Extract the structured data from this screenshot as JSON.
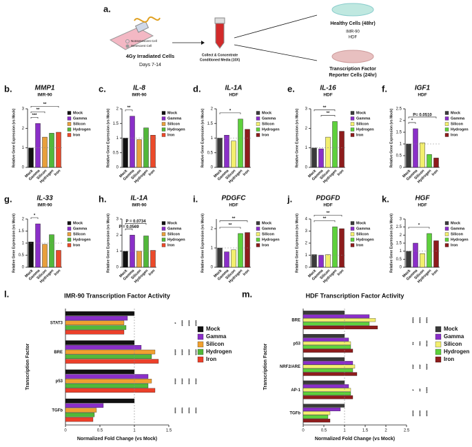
{
  "diagram": {
    "label": "a.",
    "legend_nonsenescent": "Nonsenescent Cell",
    "legend_senescent": "Senescent Cell",
    "step1_title": "4Gy Irradiated Cells",
    "step1_days": "Days 7-14",
    "step2_line1": "Collect & Concentrate",
    "step2_line2": "Conditioned Media (10X)",
    "out1_title": "Healthy Cells (48hr)",
    "out1_line1": "IMR-90",
    "out1_line2": "HDF",
    "out2_line1": "Transcription Factor",
    "out2_line2": "Reporter Cells (24hr)"
  },
  "chart_data": [
    {
      "type": "bar",
      "label": "b.",
      "title": "MMP1",
      "subtitle": "IMR-90",
      "ylabel": "Relative Gene Expression (vs Mock)",
      "categories": [
        "Mock",
        "Gamma",
        "Silicon",
        "Hydrogen",
        "Iron"
      ],
      "values": [
        1.0,
        2.25,
        1.55,
        1.75,
        1.8
      ],
      "colors": [
        "#111111",
        "#8a2fc8",
        "#e8a03c",
        "#52b83a",
        "#ec4a2a"
      ],
      "ylim": [
        0,
        3
      ],
      "yticks": [
        0,
        1,
        2,
        3
      ],
      "reference_line": 1,
      "annotations": [
        {
          "text": "***",
          "between": [
            "Mock",
            "Gamma"
          ]
        },
        {
          "text": "**",
          "between": [
            "Mock",
            "Silicon"
          ]
        },
        {
          "text": "**",
          "between": [
            "Mock",
            "Iron"
          ]
        }
      ]
    },
    {
      "type": "bar",
      "label": "c.",
      "title": "IL-8",
      "subtitle": "IMR-90",
      "ylabel": "Relative Gene Expression (vs Mock)",
      "categories": [
        "Mock",
        "Gamma",
        "Silicon",
        "Hydrogen",
        "Iron"
      ],
      "values": [
        1.0,
        1.75,
        0.95,
        1.35,
        1.1
      ],
      "colors": [
        "#111111",
        "#8a2fc8",
        "#e8a03c",
        "#52b83a",
        "#ec4a2a"
      ],
      "ylim": [
        0,
        2
      ],
      "yticks": [
        0,
        0.5,
        1,
        1.5,
        2
      ],
      "reference_line": 1,
      "annotations": [
        {
          "text": "**",
          "between": [
            "Mock",
            "Gamma"
          ]
        }
      ]
    },
    {
      "type": "bar",
      "label": "d.",
      "title": "IL-1A",
      "subtitle": "HDF",
      "ylabel": "Relative Gene Expression (vs Mock)",
      "categories": [
        "Mock",
        "Gamma",
        "Silicon",
        "Hydrogen",
        "Iron"
      ],
      "values": [
        1.0,
        1.1,
        0.9,
        1.65,
        1.3
      ],
      "colors": [
        "#3a3a3a",
        "#8a2fc8",
        "#f3ef6e",
        "#5ed13c",
        "#8e1c1c"
      ],
      "ylim": [
        0,
        2
      ],
      "yticks": [
        0,
        0.5,
        1,
        1.5,
        2
      ],
      "reference_line": 1,
      "annotations": [
        {
          "text": "*",
          "between": [
            "Mock",
            "Hydrogen"
          ]
        }
      ]
    },
    {
      "type": "bar",
      "label": "e.",
      "title": "IL-16",
      "subtitle": "HDF",
      "ylabel": "Relative Gene Expression (vs Mock)",
      "categories": [
        "Mock",
        "Gamma",
        "Silicon",
        "Hydrogen",
        "Iron"
      ],
      "values": [
        1.0,
        0.95,
        1.55,
        2.35,
        1.85
      ],
      "colors": [
        "#3a3a3a",
        "#8a2fc8",
        "#f3ef6e",
        "#5ed13c",
        "#8e1c1c"
      ],
      "ylim": [
        0,
        3
      ],
      "yticks": [
        0,
        1,
        2,
        3
      ],
      "reference_line": 1,
      "annotations": [
        {
          "text": "**",
          "between": [
            "Gamma",
            "Hydrogen"
          ]
        },
        {
          "text": "**",
          "between": [
            "Mock",
            "Hydrogen"
          ]
        }
      ]
    },
    {
      "type": "bar",
      "label": "f.",
      "title": "IGF1",
      "subtitle": "HDF",
      "ylabel": "Relative Gene Expression (vs Mock)",
      "categories": [
        "Mock",
        "Gamma",
        "Silicon",
        "Hydrogen",
        "Iron"
      ],
      "values": [
        1.0,
        1.65,
        1.05,
        0.55,
        0.4
      ],
      "colors": [
        "#3a3a3a",
        "#8a2fc8",
        "#f3ef6e",
        "#5ed13c",
        "#8e1c1c"
      ],
      "ylim": [
        0,
        2.5
      ],
      "yticks": [
        0,
        0.5,
        1,
        1.5,
        2,
        2.5
      ],
      "reference_line": 1,
      "annotations": [
        {
          "text": "*",
          "between": [
            "Mock",
            "Gamma"
          ]
        },
        {
          "text": "P= 0.0510",
          "between": [
            "Mock",
            "Iron"
          ]
        }
      ]
    },
    {
      "type": "bar",
      "label": "g.",
      "title": "IL-33",
      "subtitle": "IMR-90",
      "ylabel": "Relative Gene Expression (vs Mock)",
      "categories": [
        "Mock",
        "Gamma",
        "Silicon",
        "Hydrogen",
        "Iron"
      ],
      "values": [
        1.05,
        1.8,
        0.95,
        1.35,
        0.7
      ],
      "colors": [
        "#111111",
        "#8a2fc8",
        "#e8a03c",
        "#52b83a",
        "#ec4a2a"
      ],
      "ylim": [
        0,
        2
      ],
      "yticks": [
        0,
        0.5,
        1,
        1.5,
        2
      ],
      "reference_line": 1,
      "annotations": [
        {
          "text": "*",
          "between": [
            "Mock",
            "Gamma"
          ]
        }
      ]
    },
    {
      "type": "bar",
      "label": "h.",
      "title": "IL-1A",
      "subtitle": "IMR-90",
      "ylabel": "Relative Gene Expression (vs Mock)",
      "categories": [
        "Mock",
        "Gamma",
        "Silicon",
        "Hydrogen",
        "Iron"
      ],
      "values": [
        1.0,
        2.0,
        1.0,
        1.95,
        1.05
      ],
      "colors": [
        "#111111",
        "#8a2fc8",
        "#e8a03c",
        "#52b83a",
        "#ec4a2a"
      ],
      "ylim": [
        0,
        3
      ],
      "yticks": [
        0,
        1,
        2,
        3
      ],
      "reference_line": 1,
      "annotations": [
        {
          "text": "P = 0.0569",
          "between": [
            "Mock",
            "Gamma"
          ]
        },
        {
          "text": "P = 0.0734",
          "between": [
            "Mock",
            "Hydrogen"
          ]
        }
      ]
    },
    {
      "type": "bar",
      "label": "i.",
      "title": "PDGFC",
      "subtitle": "HDF",
      "ylabel": "Relative Gene Expression (vs Mock)",
      "categories": [
        "Mock",
        "Gamma",
        "Silicon",
        "Hydrogen",
        "Iron"
      ],
      "values": [
        1.0,
        0.8,
        0.9,
        1.75,
        1.8
      ],
      "colors": [
        "#3a3a3a",
        "#8a2fc8",
        "#f3ef6e",
        "#5ed13c",
        "#8e1c1c"
      ],
      "ylim": [
        0,
        2.5
      ],
      "yticks": [
        0,
        1,
        2
      ],
      "reference_line": 1,
      "annotations": [
        {
          "text": "**",
          "between": [
            "Mock",
            "Hydrogen"
          ]
        },
        {
          "text": "**",
          "between": [
            "Mock",
            "Iron"
          ]
        }
      ]
    },
    {
      "type": "bar",
      "label": "j.",
      "title": "PDGFD",
      "subtitle": "HDF",
      "ylabel": "Relative Gene Expression (vs Mock)",
      "categories": [
        "Mock",
        "Gamma",
        "Silicon",
        "Hydrogen",
        "Iron"
      ],
      "values": [
        1.05,
        1.0,
        1.05,
        3.35,
        3.2
      ],
      "colors": [
        "#3a3a3a",
        "#8a2fc8",
        "#f3ef6e",
        "#5ed13c",
        "#8e1c1c"
      ],
      "ylim": [
        0,
        4
      ],
      "yticks": [
        0,
        1,
        2,
        3,
        4
      ],
      "reference_line": 1,
      "annotations": [
        {
          "text": "**",
          "between": [
            "Mock",
            "Hydrogen"
          ]
        },
        {
          "text": "**",
          "between": [
            "Mock",
            "Iron"
          ]
        }
      ]
    },
    {
      "type": "bar",
      "label": "k.",
      "title": "HGF",
      "subtitle": "HDF",
      "ylabel": "Relative Gene Expression (vs Mock)",
      "categories": [
        "Mock",
        "Gamma",
        "Silicon",
        "Hydrogen",
        "Iron"
      ],
      "values": [
        1.0,
        1.5,
        0.85,
        2.1,
        1.65
      ],
      "colors": [
        "#3a3a3a",
        "#8a2fc8",
        "#f3ef6e",
        "#5ed13c",
        "#8e1c1c"
      ],
      "ylim": [
        0,
        3
      ],
      "yticks": [
        0,
        0.5,
        1,
        1.5,
        2,
        2.5,
        3
      ],
      "reference_line": 1,
      "annotations": [
        {
          "text": "*",
          "between": [
            "Mock",
            "Hydrogen"
          ]
        }
      ]
    },
    {
      "type": "hbar",
      "label": "l.",
      "title": "IMR-90 Transcription Factor Activity",
      "xlabel": "Normalized Fold Change (vs Mock)",
      "ylabel": "Transcription Factor",
      "categories": [
        "STAT3",
        "BRE",
        "p53",
        "TGFb"
      ],
      "series": [
        {
          "name": "Mock",
          "color": "#111111",
          "values": [
            1.0,
            1.0,
            1.0,
            1.0
          ]
        },
        {
          "name": "Gamma",
          "color": "#8a2fc8",
          "values": [
            0.9,
            1.1,
            1.2,
            0.55
          ]
        },
        {
          "name": "Silicon",
          "color": "#f0a030",
          "values": [
            0.85,
            1.3,
            1.25,
            0.45
          ]
        },
        {
          "name": "Hydrogen",
          "color": "#52b83a",
          "values": [
            0.88,
            1.25,
            1.2,
            0.42
          ]
        },
        {
          "name": "Iron",
          "color": "#ec402a",
          "values": [
            0.85,
            1.35,
            1.3,
            0.4
          ]
        }
      ],
      "xlim": [
        0,
        1.5
      ],
      "xticks": [
        0,
        0.5,
        1,
        1.5
      ],
      "reference_line": 1,
      "significance": [
        [
          "*",
          "****",
          "****",
          "****"
        ],
        [
          "****",
          "****",
          "****",
          "****"
        ],
        [
          "****",
          "****",
          "****",
          "****"
        ],
        [
          "****",
          "****",
          "****",
          "****"
        ]
      ]
    },
    {
      "type": "hbar",
      "label": "m.",
      "title": "HDF Transcription Factor Activity",
      "xlabel": "Normalized Fold Change (vs Mock)",
      "ylabel": "Transcription Factor",
      "categories": [
        "BRE",
        "p53",
        "NRF2/ARE",
        "AP-1",
        "TGFb"
      ],
      "series": [
        {
          "name": "Mock",
          "color": "#3a3a3a",
          "values": [
            1.0,
            1.0,
            1.0,
            1.0,
            1.0
          ]
        },
        {
          "name": "Gamma",
          "color": "#8a2fc8",
          "values": [
            1.6,
            1.1,
            1.2,
            1.1,
            0.9
          ]
        },
        {
          "name": "Silicon",
          "color": "#f3ef6e",
          "values": [
            1.75,
            1.15,
            1.25,
            1.15,
            0.65
          ]
        },
        {
          "name": "Hydrogen",
          "color": "#5ed13c",
          "values": [
            1.6,
            1.15,
            1.2,
            1.15,
            0.6
          ]
        },
        {
          "name": "Iron",
          "color": "#8e1c1c",
          "values": [
            1.8,
            1.2,
            1.3,
            1.2,
            0.65
          ]
        }
      ],
      "xlim": [
        0,
        2.5
      ],
      "xticks": [
        0,
        0.5,
        1,
        1.5,
        2,
        2.5
      ],
      "reference_line": 1,
      "significance": [
        [
          "****",
          "****",
          "****"
        ],
        [
          "**",
          "***",
          "****"
        ],
        [
          "***",
          "***",
          "****"
        ],
        [
          "*",
          "**",
          "****"
        ],
        [
          "****",
          "****",
          "****"
        ]
      ]
    }
  ]
}
